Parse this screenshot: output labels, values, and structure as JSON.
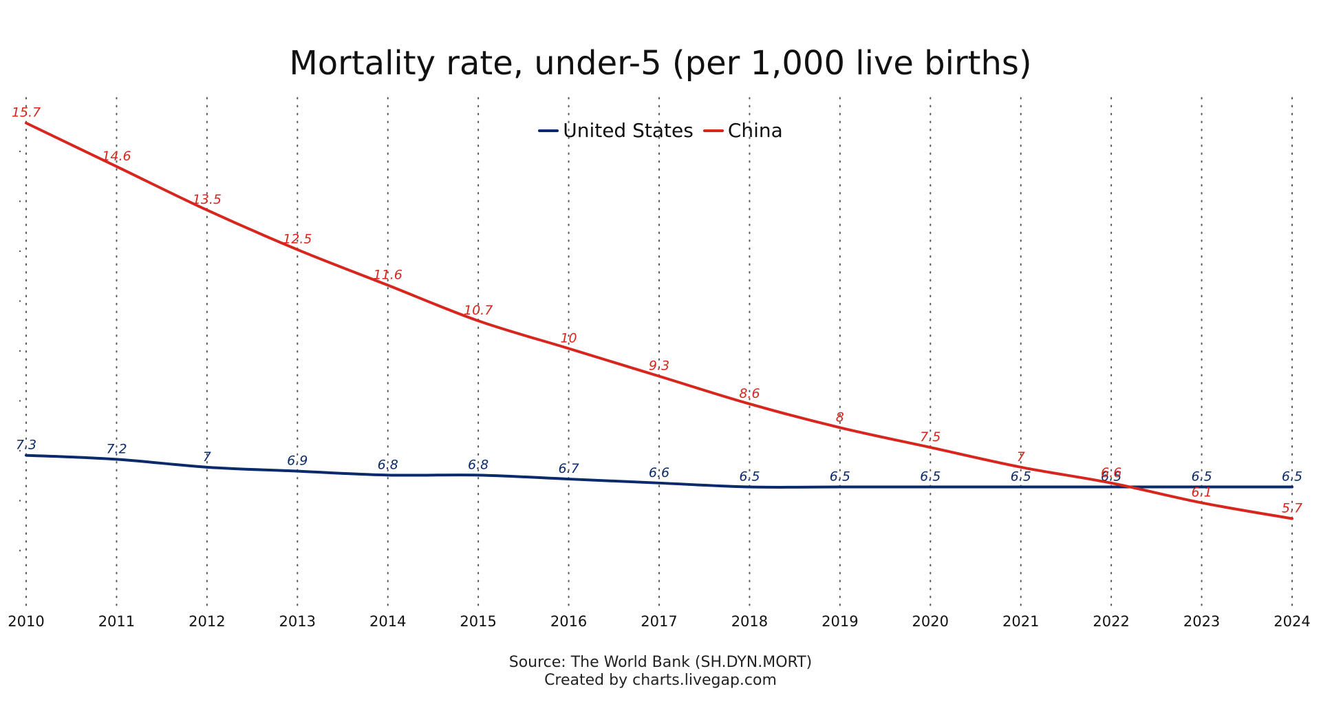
{
  "title": "Mortality rate, under-5 (per 1,000 live births)",
  "source_line_1": "Source: The World Bank (SH.DYN.MORT)",
  "source_line_2": "Created by charts.livegap.com",
  "colors": {
    "united_states": "#0a2a6b",
    "china": "#d7261e"
  },
  "chart_data": {
    "type": "line",
    "title": "Mortality rate, under-5 (per 1,000 live births)",
    "x": [
      "2010",
      "2011",
      "2012",
      "2013",
      "2014",
      "2015",
      "2016",
      "2017",
      "2018",
      "2019",
      "2020",
      "2021",
      "2022",
      "2023",
      "2024"
    ],
    "ylim": [
      3.5,
      16.2
    ],
    "grid": "vertical dotted",
    "legend_position": "top-center",
    "series": [
      {
        "name": "United States",
        "color": "#0a2a6b",
        "values": [
          7.3,
          7.2,
          7,
          6.9,
          6.8,
          6.8,
          6.7,
          6.6,
          6.5,
          6.5,
          6.5,
          6.5,
          6.5,
          6.5,
          6.5
        ]
      },
      {
        "name": "China",
        "color": "#d7261e",
        "values": [
          15.7,
          14.6,
          13.5,
          12.5,
          11.6,
          10.7,
          10,
          9.3,
          8.6,
          8,
          7.5,
          7,
          6.6,
          6.1,
          5.7
        ]
      }
    ]
  }
}
